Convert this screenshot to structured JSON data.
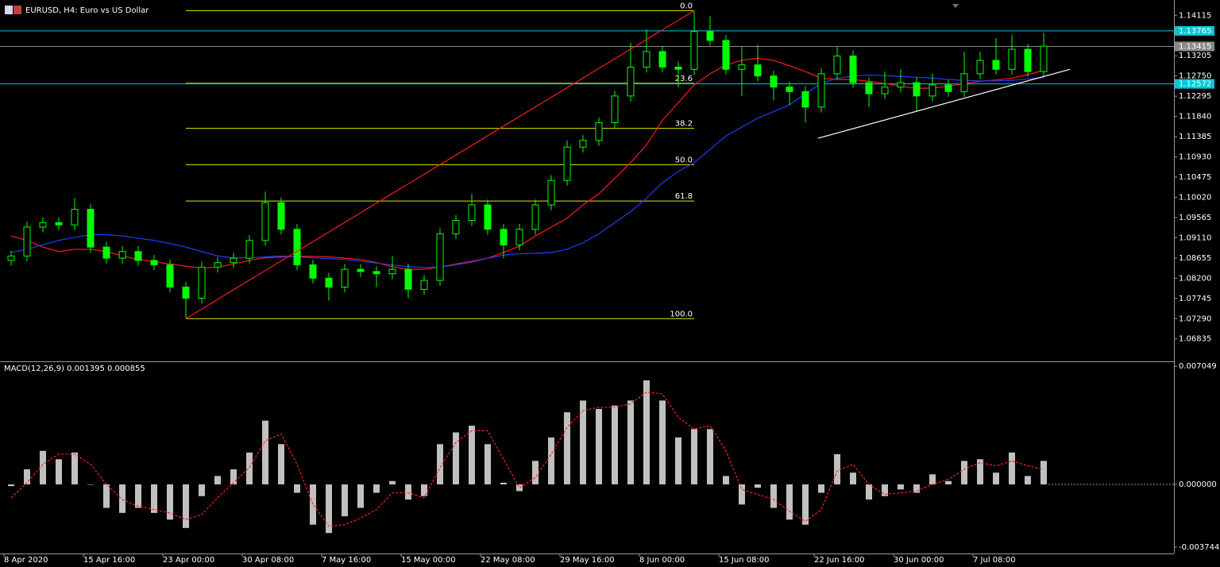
{
  "chart_data": [
    {
      "type": "candlestick",
      "title": "EURUSD, H4:  Euro vs US Dollar",
      "candle_color": "#00ff00",
      "open": [
        1.086,
        1.087,
        1.0935,
        1.0945,
        1.094,
        1.0975,
        1.089,
        1.0865,
        1.088,
        1.086,
        1.085,
        1.08,
        1.0775,
        1.0845,
        1.0855,
        1.0865,
        1.0905,
        1.099,
        1.093,
        1.085,
        1.082,
        1.08,
        1.084,
        1.0835,
        1.083,
        1.084,
        1.0795,
        1.0815,
        1.092,
        1.095,
        1.0985,
        1.093,
        1.0895,
        1.093,
        1.0985,
        1.104,
        1.1115,
        1.113,
        1.117,
        1.123,
        1.1295,
        1.133,
        1.1295,
        1.129,
        1.1375,
        1.1355,
        1.129,
        1.13,
        1.1275,
        1.125,
        1.124,
        1.1205,
        1.128,
        1.132,
        1.126,
        1.1235,
        1.125,
        1.126,
        1.123,
        1.1255,
        1.124,
        1.128,
        1.131,
        1.129,
        1.1335,
        1.1285
      ],
      "high": [
        1.0882,
        1.0947,
        1.0957,
        1.0957,
        1.1,
        1.0987,
        1.0902,
        1.0892,
        1.0892,
        1.0872,
        1.0862,
        1.0812,
        1.0857,
        1.0867,
        1.0877,
        1.0917,
        1.1015,
        1.1002,
        1.0942,
        1.0862,
        1.0832,
        1.0852,
        1.0852,
        1.0847,
        1.087,
        1.0852,
        1.0827,
        1.0932,
        1.0962,
        1.101,
        1.0997,
        1.0942,
        1.0942,
        1.0997,
        1.1052,
        1.113,
        1.1142,
        1.1182,
        1.1242,
        1.135,
        1.138,
        1.1342,
        1.1307,
        1.1422,
        1.141,
        1.1367,
        1.134,
        1.1345,
        1.1287,
        1.1262,
        1.1252,
        1.1292,
        1.134,
        1.1332,
        1.1272,
        1.1285,
        1.129,
        1.1272,
        1.128,
        1.1267,
        1.133,
        1.133,
        1.136,
        1.1368,
        1.1347,
        1.1372
      ],
      "low": [
        1.0848,
        1.0858,
        1.0923,
        1.0928,
        1.0928,
        1.0878,
        1.0853,
        1.0853,
        1.0848,
        1.0838,
        1.0788,
        1.0729,
        1.0763,
        1.0833,
        1.0843,
        1.0853,
        1.0893,
        1.0918,
        1.0838,
        1.0808,
        1.077,
        1.0788,
        1.0823,
        1.08,
        1.0818,
        1.0775,
        1.0783,
        1.0803,
        1.0908,
        1.0938,
        1.0918,
        1.0865,
        1.0883,
        1.0918,
        1.0973,
        1.1028,
        1.1103,
        1.1118,
        1.1158,
        1.1218,
        1.1283,
        1.1283,
        1.125,
        1.1278,
        1.1343,
        1.1278,
        1.123,
        1.1263,
        1.122,
        1.121,
        1.117,
        1.1193,
        1.1268,
        1.1248,
        1.1205,
        1.1223,
        1.1238,
        1.1195,
        1.1218,
        1.1228,
        1.1228,
        1.1268,
        1.1278,
        1.1278,
        1.1273,
        1.1273
      ],
      "close": [
        1.087,
        1.0935,
        1.0945,
        1.094,
        1.0975,
        1.089,
        1.0865,
        1.088,
        1.086,
        1.085,
        1.08,
        1.0775,
        1.0845,
        1.0855,
        1.0865,
        1.0905,
        1.099,
        1.093,
        1.085,
        1.082,
        1.08,
        1.084,
        1.0835,
        1.083,
        1.084,
        1.0795,
        1.0815,
        1.092,
        1.095,
        1.0985,
        1.093,
        1.0895,
        1.093,
        1.0985,
        1.104,
        1.1115,
        1.113,
        1.117,
        1.123,
        1.1295,
        1.133,
        1.1295,
        1.129,
        1.1375,
        1.1355,
        1.129,
        1.13,
        1.1275,
        1.125,
        1.124,
        1.1205,
        1.128,
        1.132,
        1.126,
        1.1235,
        1.125,
        1.126,
        1.123,
        1.1255,
        1.124,
        1.128,
        1.131,
        1.129,
        1.1335,
        1.1285,
        1.1342
      ],
      "moving_averages": [
        {
          "color": "#ff1a1a",
          "values": [
            1.0915,
            1.0905,
            1.089,
            1.088,
            1.0885,
            1.0885,
            1.088,
            1.087,
            1.0862,
            1.0857,
            1.0852,
            1.0847,
            1.0843,
            1.0845,
            1.0852,
            1.086,
            1.0866,
            1.0868,
            1.0869,
            1.0869,
            1.0868,
            1.0865,
            1.0862,
            1.0855,
            1.0846,
            1.084,
            1.084,
            1.0845,
            1.0852,
            1.0858,
            1.0865,
            1.0878,
            1.0892,
            1.0915,
            1.0935,
            1.0955,
            1.0985,
            1.101,
            1.1045,
            1.108,
            1.112,
            1.1175,
            1.1215,
            1.1255,
            1.128,
            1.13,
            1.131,
            1.1315,
            1.131,
            1.1298,
            1.1285,
            1.127,
            1.1267,
            1.1267,
            1.1263,
            1.1258,
            1.1252,
            1.1247,
            1.1248,
            1.1252,
            1.1258,
            1.1263,
            1.1266,
            1.127,
            1.1278,
            1.1288
          ]
        },
        {
          "color": "#1e3cff",
          "values": [
            1.0878,
            1.0885,
            1.0895,
            1.0905,
            1.0912,
            1.0918,
            1.0918,
            1.0915,
            1.091,
            1.0905,
            1.0898,
            1.089,
            1.088,
            1.087,
            1.0866,
            1.0866,
            1.0868,
            1.087,
            1.0868,
            1.0866,
            1.0864,
            1.0862,
            1.0858,
            1.0854,
            1.085,
            1.0846,
            1.0844,
            1.0845,
            1.085,
            1.0856,
            1.0865,
            1.0872,
            1.0875,
            1.0876,
            1.0878,
            1.0885,
            1.09,
            1.092,
            1.0945,
            1.097,
            1.1,
            1.1035,
            1.106,
            1.108,
            1.111,
            1.114,
            1.116,
            1.118,
            1.1195,
            1.121,
            1.1235,
            1.1258,
            1.127,
            1.1275,
            1.1277,
            1.1276,
            1.1274,
            1.1272,
            1.127,
            1.1267,
            1.1265,
            1.1264,
            1.1264,
            1.1265,
            1.1268,
            1.1272
          ]
        }
      ],
      "price_lines": [
        {
          "value": 1.13765,
          "color": "#00c8d8"
        },
        {
          "value": 1.13415,
          "color": "#8a8a8a"
        },
        {
          "value": 1.12572,
          "color": "#00c8d8"
        }
      ],
      "fibonacci": {
        "color": "#e6e600",
        "high": 1.1422,
        "low": 1.0729,
        "start": 11,
        "end": 43,
        "levels": [
          {
            "value": 0,
            "label": "0.0"
          },
          23.6,
          38.2,
          {
            "value": 50,
            "label": "50.0"
          },
          61.8,
          {
            "value": 100,
            "label": "100.0"
          }
        ]
      },
      "trendlines": [
        {
          "color": "#ff1a1a",
          "points": [
            [
              11,
              1.0729
            ],
            [
              43,
              1.1422
            ]
          ]
        },
        {
          "color": "#ffffff",
          "points": [
            [
              50.8,
              1.1135
            ],
            [
              66.65,
              1.129
            ]
          ]
        }
      ],
      "ylim": [
        1.0633,
        1.1437
      ],
      "yticks": [
        1.14115,
        1.13205,
        {
          "value": 1.1275,
          "label": "1.12750"
        },
        1.12295,
        {
          "value": 1.1184,
          "label": "1.11840"
        },
        1.11385,
        {
          "value": 1.1093,
          "label": "1.10930"
        },
        1.10475,
        {
          "value": 1.1002,
          "label": "1.10020"
        },
        1.09565,
        {
          "value": 1.0911,
          "label": "1.09110"
        },
        1.08655,
        {
          "value": 1.082,
          "label": "1.08200"
        },
        1.07745,
        {
          "value": 1.0729,
          "label": "1.07290"
        },
        1.06835
      ]
    },
    {
      "type": "macd",
      "title": "MACD(12,26,9) 0.001395 0.000855",
      "histogram_color": "#c0c0c0",
      "signal_color": "#ff2020",
      "categories": [
        "8 Apr 2020",
        null,
        null,
        null,
        null,
        "15 Apr 16:00",
        null,
        null,
        null,
        null,
        "23 Apr 00:00",
        null,
        null,
        null,
        null,
        "30 Apr 08:00",
        null,
        null,
        null,
        null,
        "7 May 16:00",
        null,
        null,
        null,
        null,
        "15 May 00:00",
        null,
        null,
        null,
        null,
        "22 May 08:00",
        null,
        null,
        null,
        null,
        "29 May 16:00",
        null,
        null,
        null,
        null,
        "8 Jun 00:00",
        null,
        null,
        null,
        null,
        "15 Jun 08:00",
        null,
        null,
        null,
        null,
        null,
        "22 Jun 16:00",
        null,
        null,
        null,
        null,
        "30 Jun 00:00",
        null,
        null,
        null,
        null,
        "7 Jul 08:00",
        null,
        null,
        null,
        null
      ],
      "histogram": [
        -0.0001,
        0.0009,
        0.002,
        0.0015,
        0.0019,
        0.0,
        -0.0014,
        -0.0017,
        -0.0014,
        -0.0017,
        -0.0021,
        -0.0026,
        -0.0007,
        0.0005,
        0.0009,
        0.0019,
        0.0038,
        0.0024,
        -0.0005,
        -0.0024,
        -0.0029,
        -0.0019,
        -0.0014,
        -0.0005,
        0.0002,
        -0.0009,
        -0.0007,
        0.0024,
        0.0031,
        0.0035,
        0.0024,
        0.0001,
        -0.0004,
        0.0014,
        0.0028,
        0.0043,
        0.005,
        0.0045,
        0.0047,
        0.005,
        0.0062,
        0.005,
        0.0028,
        0.0033,
        0.0033,
        0.0005,
        -0.0012,
        -0.0002,
        -0.0014,
        -0.0021,
        -0.0024,
        -0.0005,
        0.0018,
        0.0007,
        -0.0009,
        -0.0007,
        -0.0003,
        -0.0005,
        0.0006,
        0.0002,
        0.0014,
        0.0015,
        0.0007,
        0.0019,
        0.0005,
        0.0014
      ],
      "signal": [
        -0.0008,
        0.0001,
        0.0012,
        0.0018,
        0.0018,
        0.0012,
        0.0,
        -0.0009,
        -0.0013,
        -0.0015,
        -0.0017,
        -0.0021,
        -0.0018,
        -0.0008,
        0.0001,
        0.001,
        0.0026,
        0.003,
        0.0012,
        -0.0012,
        -0.0025,
        -0.0024,
        -0.002,
        -0.0015,
        -0.0005,
        -0.0005,
        -0.0008,
        0.001,
        0.0025,
        0.0032,
        0.0032,
        0.0015,
        -0.0002,
        0.0004,
        0.0018,
        0.0034,
        0.0044,
        0.0046,
        0.0046,
        0.0048,
        0.0055,
        0.0054,
        0.004,
        0.0033,
        0.0035,
        0.002,
        -0.0003,
        -0.0006,
        -0.0009,
        -0.0016,
        -0.0022,
        -0.0015,
        0.0008,
        0.0012,
        0.0,
        -0.0006,
        -0.0005,
        -0.0004,
        0.0,
        0.0003,
        0.0009,
        0.0013,
        0.0011,
        0.0014,
        0.0011,
        0.0009
      ],
      "ylim": [
        -0.00412,
        0.00729
      ],
      "yticks": [
        0.007049,
        {
          "value": 0,
          "label": "0.000000"
        },
        -0.003744
      ]
    }
  ]
}
